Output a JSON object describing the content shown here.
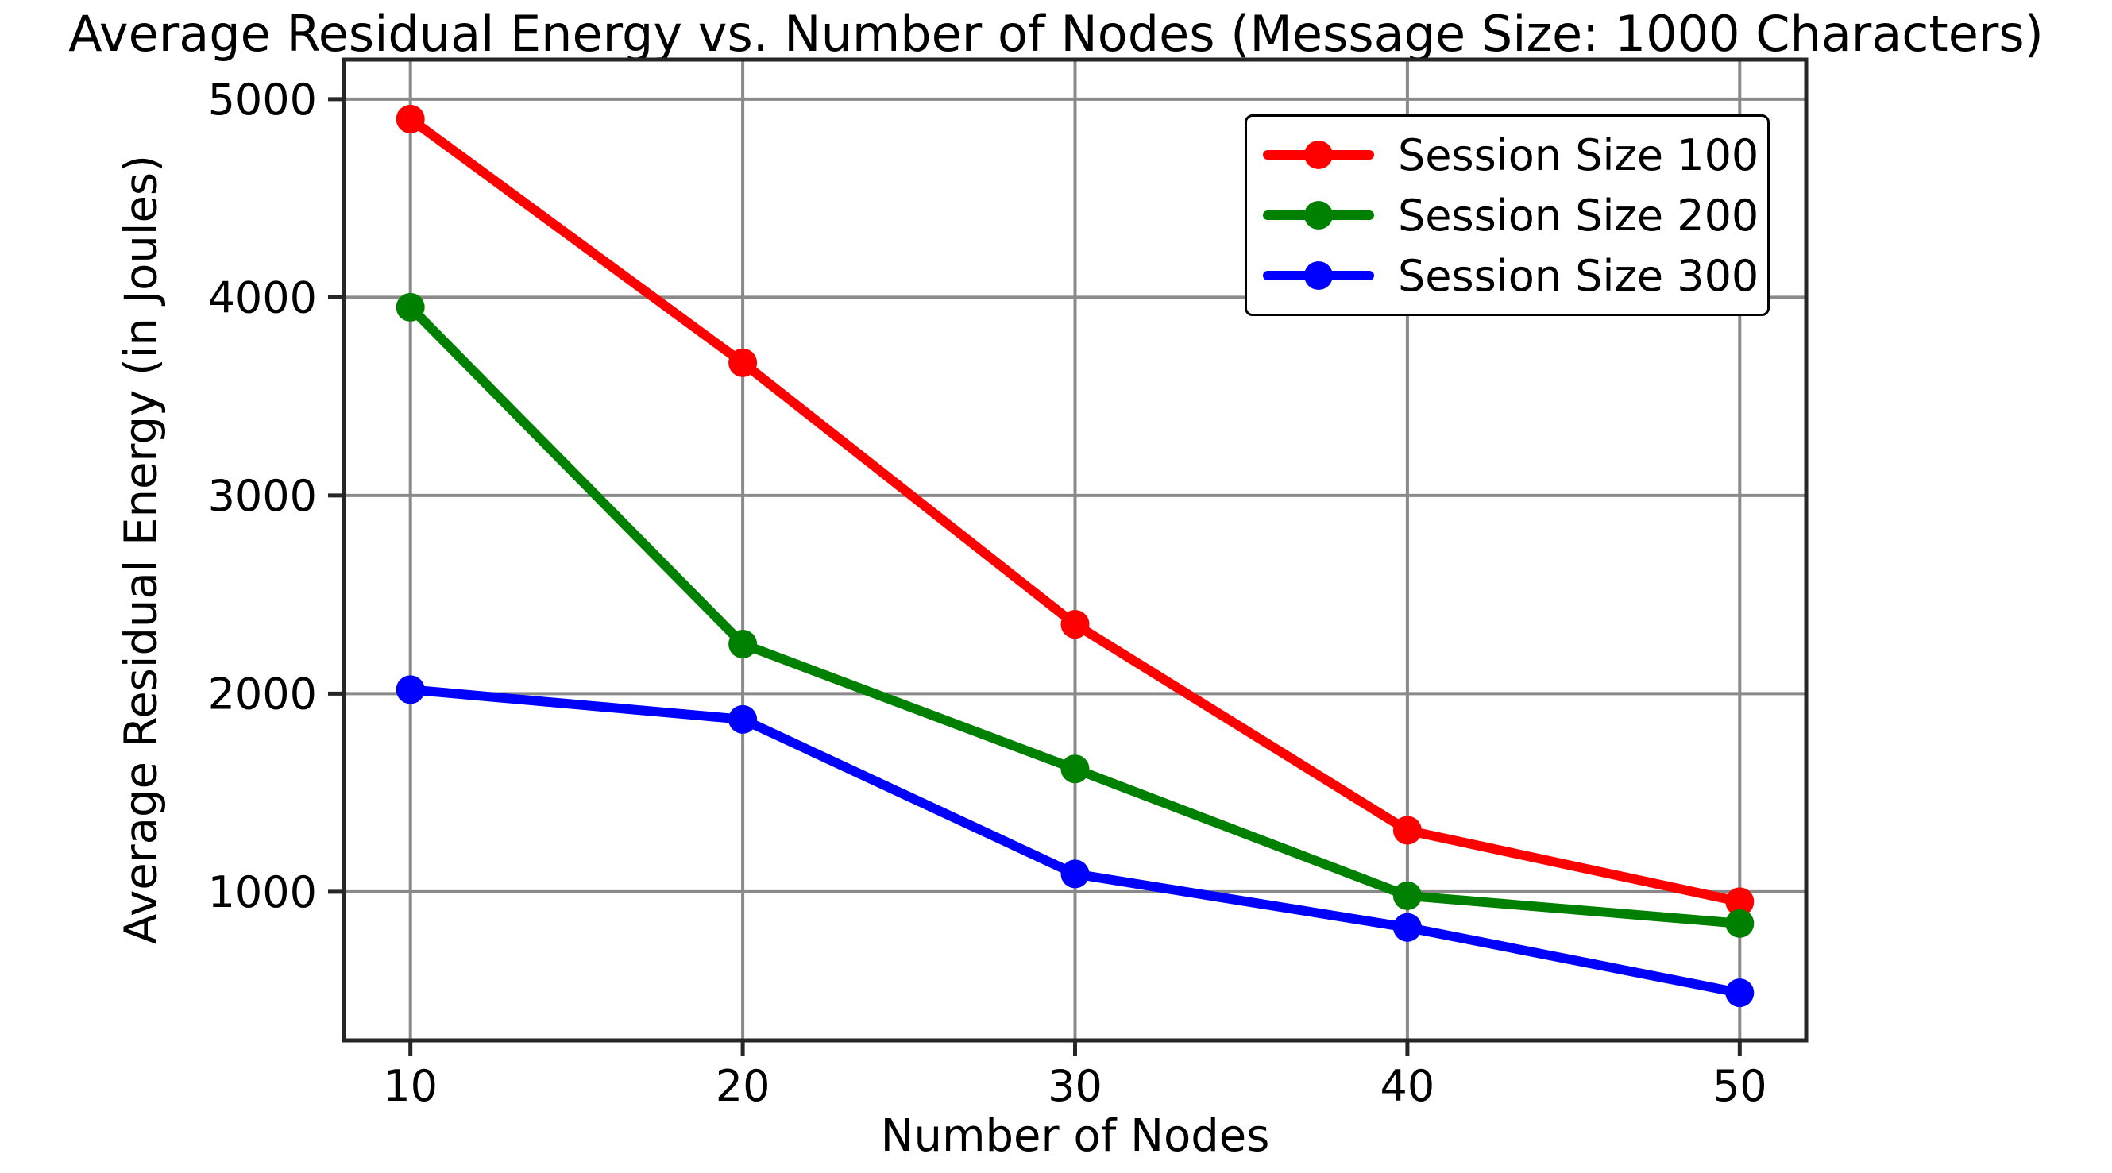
{
  "chart_data": {
    "type": "line",
    "title": "Average Residual Energy vs. Number of Nodes (Message Size: 1000 Characters)",
    "xlabel": "Number of Nodes",
    "ylabel": "Average Residual Energy (in Joules)",
    "x": [
      10,
      20,
      30,
      40,
      50
    ],
    "xticks": [
      10,
      20,
      30,
      40,
      50
    ],
    "xtick_labels": [
      "10",
      "20",
      "30",
      "40",
      "50"
    ],
    "yticks": [
      1000,
      2000,
      3000,
      4000,
      5000
    ],
    "ytick_labels": [
      "1000",
      "2000",
      "3000",
      "4000",
      "5000"
    ],
    "xlim": [
      8,
      52
    ],
    "ylim": [
      250,
      5200
    ],
    "grid": true,
    "legend_position": "upper right",
    "series": [
      {
        "name": "Session Size 100",
        "color": "#ff0000",
        "values": [
          4900,
          3670,
          2350,
          1310,
          950
        ]
      },
      {
        "name": "Session Size 200",
        "color": "#008000",
        "values": [
          3950,
          2250,
          1620,
          980,
          840
        ]
      },
      {
        "name": "Session Size 300",
        "color": "#0000ff",
        "values": [
          2020,
          1870,
          1090,
          820,
          490
        ]
      }
    ],
    "colors": {
      "grid": "#8a8a8a",
      "spine": "#262626",
      "text": "#000000",
      "background": "#ffffff"
    }
  }
}
